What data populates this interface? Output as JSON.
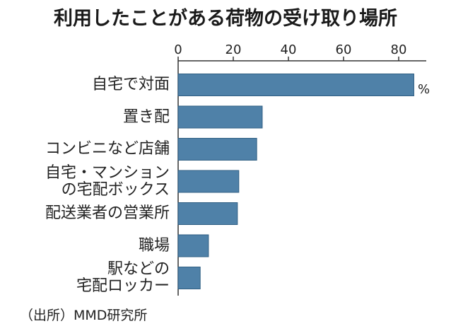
{
  "title": "利用したことがある荷物の受け取り場所",
  "unit": "%",
  "source": "（出所）MMD研究所",
  "chart_data": {
    "type": "bar",
    "orientation": "horizontal",
    "title": "利用したことがある荷物の受け取り場所",
    "categories": [
      "自宅で対面",
      "置き配",
      "コンビニなど店舗",
      "自宅・マンションの宅配ボックス",
      "配送業者の営業所",
      "職場",
      "駅などの宅配ロッカー"
    ],
    "category_lines": [
      [
        "自宅で対面"
      ],
      [
        "置き配"
      ],
      [
        "コンビニなど店舗"
      ],
      [
        "自宅・マンション",
        "の宅配ボックス"
      ],
      [
        "配送業者の営業所"
      ],
      [
        "職場"
      ],
      [
        "駅などの",
        "宅配ロッカー"
      ]
    ],
    "values": [
      85.5,
      30.5,
      28.5,
      22.0,
      21.5,
      11.0,
      8.0
    ],
    "xlim": [
      0,
      90
    ],
    "xticks": [
      0,
      20,
      40,
      60,
      80
    ],
    "unit": "%",
    "bar_color": "#4f81a8",
    "grid": false
  }
}
